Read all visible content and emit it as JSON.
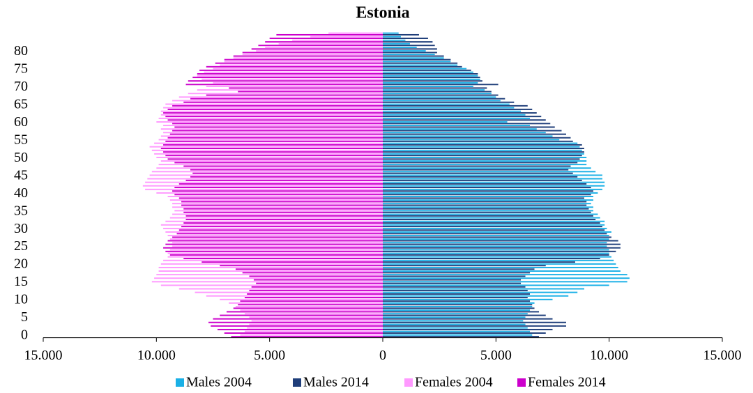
{
  "chart_data": {
    "type": "pyramid",
    "title": "Estonia",
    "y": [
      0,
      1,
      2,
      3,
      4,
      5,
      6,
      7,
      8,
      9,
      10,
      11,
      12,
      13,
      14,
      15,
      16,
      17,
      18,
      19,
      20,
      21,
      22,
      23,
      24,
      25,
      26,
      27,
      28,
      29,
      30,
      31,
      32,
      33,
      34,
      35,
      36,
      37,
      38,
      39,
      40,
      41,
      42,
      43,
      44,
      45,
      46,
      47,
      48,
      49,
      50,
      51,
      52,
      53,
      54,
      55,
      56,
      57,
      58,
      59,
      60,
      61,
      62,
      63,
      64,
      65,
      66,
      67,
      68,
      69,
      70,
      71,
      72,
      73,
      74,
      75,
      76,
      77,
      78,
      79,
      80,
      81,
      82,
      83,
      84,
      85
    ],
    "ylim": [
      -0.5,
      85.5
    ],
    "yticks": [
      0,
      5,
      10,
      15,
      20,
      25,
      30,
      35,
      40,
      45,
      50,
      55,
      60,
      65,
      70,
      75,
      80
    ],
    "xlim": [
      -15000,
      15000
    ],
    "xticks": [
      {
        "value": -15000,
        "label": "15.000"
      },
      {
        "value": -10000,
        "label": "10.000"
      },
      {
        "value": -5000,
        "label": "5.000"
      },
      0,
      {
        "value": 5000,
        "label": "5.000"
      },
      {
        "value": 10000,
        "label": "10.000"
      },
      {
        "value": 15000,
        "label": "15.000"
      }
    ],
    "series": [
      {
        "name": "Males 2004",
        "color": "#1ab0e6",
        "values": [
          6600,
          6500,
          6400,
          6300,
          6200,
          6300,
          6400,
          6500,
          6600,
          6700,
          7500,
          8200,
          8600,
          8900,
          10000,
          10800,
          10900,
          10800,
          10500,
          10400,
          10300,
          10200,
          10100,
          10000,
          10000,
          9900,
          9900,
          10000,
          10000,
          10100,
          9900,
          9800,
          9800,
          9600,
          9500,
          9300,
          9300,
          9200,
          9300,
          9300,
          9500,
          9700,
          9800,
          9800,
          9700,
          9700,
          9400,
          9200,
          9000,
          9000,
          9000,
          8900,
          8800,
          8700,
          8600,
          7800,
          7500,
          7200,
          6800,
          6500,
          5500,
          6500,
          6300,
          6100,
          5800,
          5600,
          5200,
          5000,
          4800,
          4500,
          4000,
          4200,
          4300,
          4200,
          4000,
          3700,
          3300,
          3000,
          2700,
          2300,
          1900,
          1500,
          1200,
          1000,
          800,
          700
        ]
      },
      {
        "name": "Males 2014",
        "color": "#1f3e7a",
        "values": [
          6900,
          7200,
          7500,
          8100,
          8100,
          7500,
          7200,
          6900,
          6700,
          6600,
          6500,
          6400,
          6500,
          6400,
          6300,
          6100,
          6100,
          6300,
          6500,
          6700,
          7200,
          8500,
          9600,
          10000,
          10300,
          10500,
          10500,
          10400,
          10100,
          9900,
          9800,
          9700,
          9600,
          9400,
          9300,
          9200,
          9100,
          9000,
          9000,
          8900,
          9200,
          9300,
          9200,
          9000,
          8800,
          8600,
          8400,
          8200,
          8300,
          8600,
          8700,
          8800,
          8900,
          8900,
          8800,
          8400,
          8300,
          8100,
          7900,
          7600,
          7400,
          7200,
          7000,
          6800,
          6600,
          6400,
          5800,
          5400,
          5100,
          4800,
          4600,
          5100,
          4400,
          4300,
          4200,
          3900,
          3500,
          3300,
          3000,
          2700,
          2400,
          2400,
          2300,
          2200,
          2000,
          1600
        ]
      },
      {
        "name": "Females 2004",
        "color": "#ff99ff",
        "values": [
          -6300,
          -6100,
          -6000,
          -5900,
          -5800,
          -5900,
          -6100,
          -6300,
          -6500,
          -6800,
          -7200,
          -7800,
          -8300,
          -9000,
          -9800,
          -10200,
          -10100,
          -10000,
          -9900,
          -9900,
          -9800,
          -9700,
          -9500,
          -9500,
          -9400,
          -9300,
          -9300,
          -9400,
          -9500,
          -9600,
          -9700,
          -9800,
          -9600,
          -9400,
          -9300,
          -9200,
          -9300,
          -9300,
          -9400,
          -9500,
          -10000,
          -10500,
          -10600,
          -10500,
          -10400,
          -10300,
          -10200,
          -10000,
          -9900,
          -9800,
          -10000,
          -10100,
          -10200,
          -10300,
          -10100,
          -9900,
          -9800,
          -9700,
          -9800,
          -9700,
          -10000,
          -9900,
          -9800,
          -9800,
          -9700,
          -9600,
          -9300,
          -9000,
          -8600,
          -8200,
          -7800,
          -7500,
          -8000,
          -8200,
          -7900,
          -7500,
          -7200,
          -7000,
          -6600,
          -6200,
          -5600,
          -5200,
          -4600,
          -4000,
          -3200,
          -2400
        ]
      },
      {
        "name": "Females 2014",
        "color": "#cc00cc",
        "values": [
          -6700,
          -7000,
          -7300,
          -7600,
          -7700,
          -7500,
          -7200,
          -6900,
          -6600,
          -6400,
          -6300,
          -6100,
          -6000,
          -5900,
          -5800,
          -5600,
          -5700,
          -5900,
          -6200,
          -6500,
          -7200,
          -8000,
          -8800,
          -9400,
          -9600,
          -9700,
          -9600,
          -9500,
          -9300,
          -9100,
          -9000,
          -8900,
          -8800,
          -8700,
          -8700,
          -8800,
          -8800,
          -8900,
          -8900,
          -9000,
          -9200,
          -9300,
          -9200,
          -9000,
          -8700,
          -8500,
          -8400,
          -8500,
          -8800,
          -9200,
          -9500,
          -9600,
          -9700,
          -9800,
          -9700,
          -9600,
          -9500,
          -9400,
          -9300,
          -9200,
          -9300,
          -9500,
          -9600,
          -9700,
          -9500,
          -9300,
          -8800,
          -8500,
          -7800,
          -6400,
          -6800,
          -8700,
          -8600,
          -8400,
          -8200,
          -8100,
          -7800,
          -7400,
          -7000,
          -6600,
          -6200,
          -5800,
          -5500,
          -5200,
          -5000,
          -4700
        ]
      }
    ]
  }
}
